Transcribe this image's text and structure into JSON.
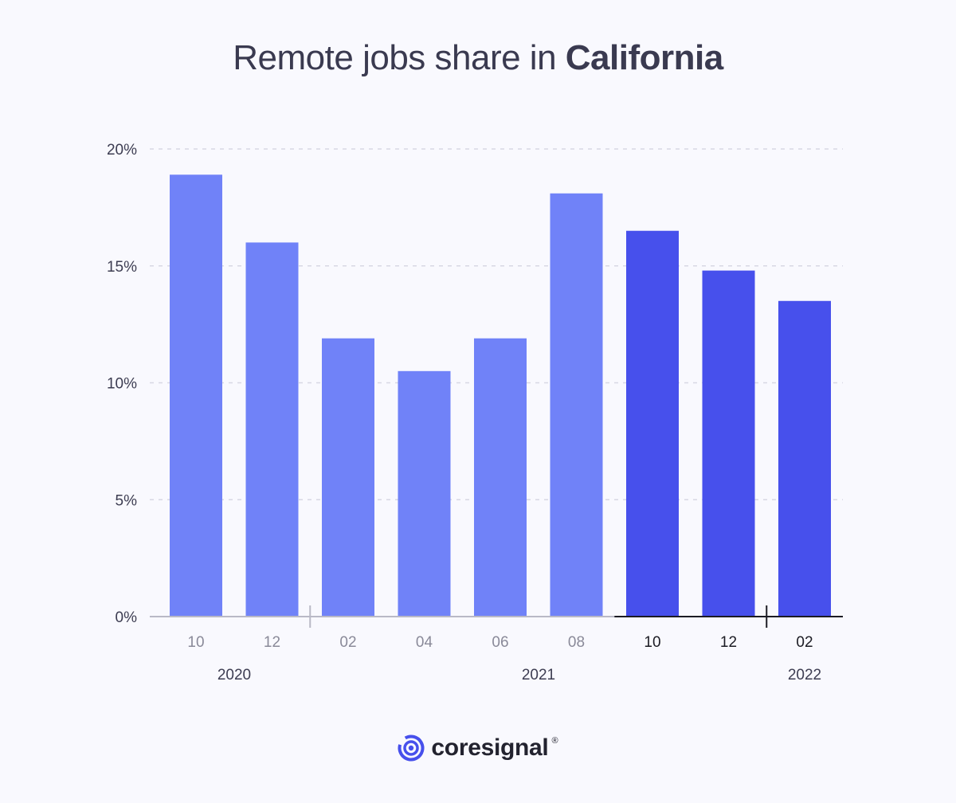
{
  "header": {
    "title_prefix": "Remote jobs share in",
    "title_emphasis": "California"
  },
  "chart_data": {
    "type": "bar",
    "title": "Remote jobs share in California",
    "categories": [
      "10",
      "12",
      "02",
      "04",
      "06",
      "08",
      "10",
      "12",
      "02"
    ],
    "years": [
      {
        "label": "2020",
        "span": [
          0,
          1
        ]
      },
      {
        "label": "2021",
        "span": [
          2,
          7
        ]
      },
      {
        "label": "2022",
        "span": [
          8,
          8
        ]
      }
    ],
    "values": [
      18.9,
      16.0,
      11.9,
      10.5,
      11.9,
      18.1,
      16.5,
      14.8,
      13.5
    ],
    "highlight": [
      false,
      false,
      false,
      false,
      false,
      false,
      true,
      true,
      true
    ],
    "ylim": [
      0,
      20
    ],
    "yticks": [
      0,
      5,
      10,
      15,
      20
    ],
    "ytick_labels": [
      "0%",
      "5%",
      "10%",
      "15%",
      "20%"
    ],
    "xlabel": "",
    "ylabel": "",
    "grid": true,
    "colors": {
      "bar": "#7082f8",
      "bar_highlight": "#4750ec",
      "grid": "#d8d8e4",
      "axis": "#b9b9c6",
      "axis_highlight": "#1c1c24",
      "tick_text": "#8a8a99",
      "tick_text_highlight": "#1c1c24",
      "label_text": "#3d3d52"
    }
  },
  "branding": {
    "logo_text": "coresignal",
    "logo_mark": "®",
    "logo_color": "#4750ec"
  }
}
